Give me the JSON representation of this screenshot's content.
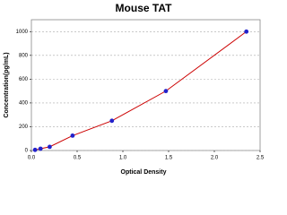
{
  "chart_data": {
    "type": "scatter",
    "title": "Mouse TAT",
    "x_label": "Optical Density",
    "y_label": "Concentration(pg/mL)",
    "x": [
      0.04,
      0.1,
      0.2,
      0.45,
      0.88,
      1.47,
      2.35
    ],
    "values": [
      5,
      15,
      31,
      125,
      250,
      500,
      1000
    ],
    "marker_color": "#2222cc",
    "line_color": "#cc0000",
    "line": true,
    "xlim": [
      0,
      2.5
    ],
    "xticks": [
      {
        "value": 0,
        "label": "0.0"
      },
      {
        "value": 0.5,
        "label": "0.5"
      },
      {
        "value": 1,
        "label": "1.0"
      },
      {
        "value": 1.5,
        "label": "1.5"
      },
      {
        "value": 2,
        "label": "2.0"
      },
      {
        "value": 2.5,
        "label": "2.5"
      }
    ],
    "ylim": [
      0,
      1100
    ],
    "yticks": [
      0,
      200,
      400,
      600,
      800,
      1000
    ],
    "grid": true
  }
}
